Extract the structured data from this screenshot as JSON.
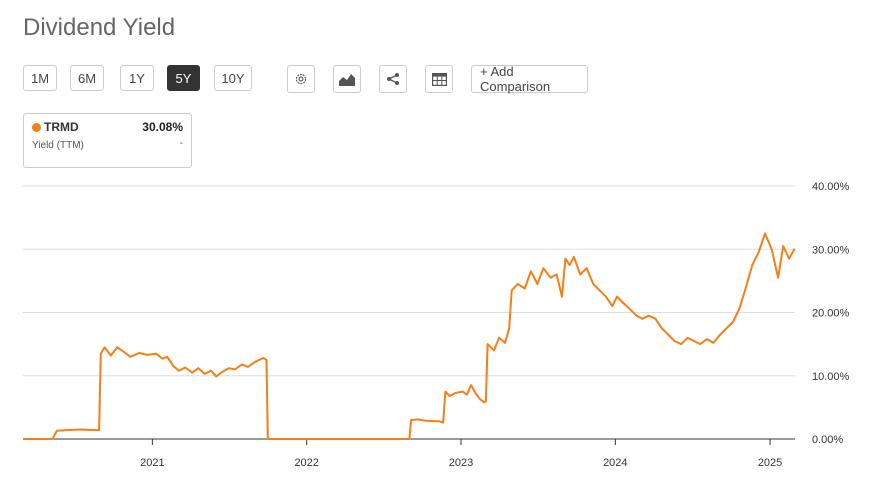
{
  "header": {
    "title": "Dividend Yield"
  },
  "toolbar": {
    "ranges": [
      {
        "label": "1M",
        "active": false
      },
      {
        "label": "6M",
        "active": false
      },
      {
        "label": "1Y",
        "active": false
      },
      {
        "label": "5Y",
        "active": true
      },
      {
        "label": "10Y",
        "active": false
      }
    ],
    "icons": [
      "settings-icon",
      "chart-type-icon",
      "share-icon",
      "table-icon"
    ],
    "compare_label": "+ Add Comparison"
  },
  "legend": {
    "ticker": "TRMD",
    "value": "30.08%",
    "metric": "Yield (TTM)",
    "sub": "-"
  },
  "colors": {
    "series": "#f57f17",
    "grid": "#dddddd",
    "axis": "#333333"
  },
  "chart_data": {
    "type": "line",
    "title": "Dividend Yield",
    "xlabel": "",
    "ylabel": "",
    "xticks": [
      "2021",
      "2022",
      "2023",
      "2024",
      "2025"
    ],
    "yticks": [
      "40.00%",
      "30.00%",
      "20.00%",
      "10.00%",
      "0.00%"
    ],
    "xlim": [
      "2020-03",
      "2025-03"
    ],
    "ylim": [
      0,
      40
    ],
    "grid": true,
    "series": [
      {
        "name": "TRMD",
        "points": [
          [
            "2020-03-01",
            0
          ],
          [
            "2020-05-10",
            0
          ],
          [
            "2020-05-20",
            1.3
          ],
          [
            "2020-06-15",
            1.4
          ],
          [
            "2020-07-15",
            1.5
          ],
          [
            "2020-08-15",
            1.4
          ],
          [
            "2020-08-28",
            1.4
          ],
          [
            "2020-09-01",
            13.5
          ],
          [
            "2020-09-10",
            14.5
          ],
          [
            "2020-09-25",
            13.2
          ],
          [
            "2020-10-10",
            14.5
          ],
          [
            "2020-10-25",
            13.8
          ],
          [
            "2020-11-10",
            13.0
          ],
          [
            "2020-12-01",
            13.6
          ],
          [
            "2020-12-20",
            13.3
          ],
          [
            "2021-01-10",
            13.5
          ],
          [
            "2021-01-25",
            12.7
          ],
          [
            "2021-02-05",
            13.0
          ],
          [
            "2021-02-20",
            11.5
          ],
          [
            "2021-03-05",
            10.8
          ],
          [
            "2021-03-20",
            11.3
          ],
          [
            "2021-04-05",
            10.5
          ],
          [
            "2021-04-20",
            11.2
          ],
          [
            "2021-05-05",
            10.3
          ],
          [
            "2021-05-20",
            10.8
          ],
          [
            "2021-06-01",
            9.9
          ],
          [
            "2021-06-15",
            10.6
          ],
          [
            "2021-07-01",
            11.2
          ],
          [
            "2021-07-15",
            11.0
          ],
          [
            "2021-08-01",
            11.8
          ],
          [
            "2021-08-15",
            11.4
          ],
          [
            "2021-09-01",
            12.2
          ],
          [
            "2021-09-20",
            12.8
          ],
          [
            "2021-09-28",
            12.5
          ],
          [
            "2021-10-01",
            0
          ],
          [
            "2022-09-01",
            0
          ],
          [
            "2022-09-05",
            3.0
          ],
          [
            "2022-09-20",
            3.1
          ],
          [
            "2022-10-10",
            2.9
          ],
          [
            "2022-11-10",
            2.8
          ],
          [
            "2022-11-20",
            2.6
          ],
          [
            "2022-11-25",
            7.5
          ],
          [
            "2022-12-05",
            6.8
          ],
          [
            "2022-12-20",
            7.3
          ],
          [
            "2023-01-05",
            7.5
          ],
          [
            "2023-01-15",
            7.0
          ],
          [
            "2023-01-25",
            8.5
          ],
          [
            "2023-02-05",
            7.2
          ],
          [
            "2023-02-15",
            6.3
          ],
          [
            "2023-02-25",
            5.8
          ],
          [
            "2023-03-01",
            6.0
          ],
          [
            "2023-03-05",
            15.0
          ],
          [
            "2023-03-20",
            14.0
          ],
          [
            "2023-04-01",
            16.0
          ],
          [
            "2023-04-15",
            15.2
          ],
          [
            "2023-04-25",
            17.5
          ],
          [
            "2023-05-01",
            23.5
          ],
          [
            "2023-05-15",
            24.5
          ],
          [
            "2023-06-01",
            23.8
          ],
          [
            "2023-06-15",
            26.5
          ],
          [
            "2023-07-01",
            24.5
          ],
          [
            "2023-07-15",
            27.0
          ],
          [
            "2023-08-01",
            25.5
          ],
          [
            "2023-08-15",
            26.0
          ],
          [
            "2023-08-28",
            22.5
          ],
          [
            "2023-09-05",
            28.5
          ],
          [
            "2023-09-15",
            27.5
          ],
          [
            "2023-09-25",
            28.8
          ],
          [
            "2023-10-10",
            26.0
          ],
          [
            "2023-10-25",
            27.0
          ],
          [
            "2023-11-10",
            24.5
          ],
          [
            "2023-11-25",
            23.5
          ],
          [
            "2023-12-10",
            22.5
          ],
          [
            "2023-12-25",
            21.0
          ],
          [
            "2024-01-05",
            22.5
          ],
          [
            "2024-01-20",
            21.5
          ],
          [
            "2024-02-05",
            20.5
          ],
          [
            "2024-02-20",
            19.5
          ],
          [
            "2024-03-05",
            19.0
          ],
          [
            "2024-03-20",
            19.5
          ],
          [
            "2024-04-05",
            19.0
          ],
          [
            "2024-04-20",
            17.5
          ],
          [
            "2024-05-05",
            16.5
          ],
          [
            "2024-05-20",
            15.5
          ],
          [
            "2024-06-05",
            15.0
          ],
          [
            "2024-06-20",
            16.0
          ],
          [
            "2024-07-05",
            15.5
          ],
          [
            "2024-07-20",
            15.0
          ],
          [
            "2024-08-05",
            15.8
          ],
          [
            "2024-08-20",
            15.2
          ],
          [
            "2024-09-05",
            16.5
          ],
          [
            "2024-09-20",
            17.5
          ],
          [
            "2024-10-05",
            18.5
          ],
          [
            "2024-10-20",
            20.5
          ],
          [
            "2024-11-05",
            24.0
          ],
          [
            "2024-11-20",
            27.5
          ],
          [
            "2024-12-05",
            29.5
          ],
          [
            "2024-12-20",
            32.5
          ],
          [
            "2025-01-05",
            30.0
          ],
          [
            "2025-01-20",
            25.5
          ],
          [
            "2025-02-01",
            30.5
          ],
          [
            "2025-02-15",
            28.5
          ],
          [
            "2025-02-28",
            30.08
          ]
        ]
      }
    ]
  }
}
